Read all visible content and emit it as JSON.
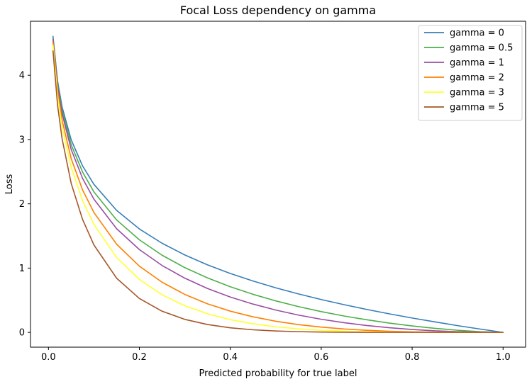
{
  "chart_data": {
    "type": "line",
    "title": "Focal Loss dependency on gamma",
    "xlabel": "Predicted probability for true label",
    "ylabel": "Loss",
    "xlim": [
      -0.0395,
      1.0495
    ],
    "ylim": [
      -0.23,
      4.84
    ],
    "x_ticks": [
      0.0,
      0.2,
      0.4,
      0.6,
      0.8,
      1.0
    ],
    "x_tick_labels": [
      "0.0",
      "0.2",
      "0.4",
      "0.6",
      "0.8",
      "1.0"
    ],
    "y_ticks": [
      0,
      1,
      2,
      3,
      4
    ],
    "y_tick_labels": [
      "0",
      "1",
      "2",
      "3",
      "4"
    ],
    "grid": false,
    "legend_position": "top-right",
    "x": [
      0.01,
      0.02,
      0.03,
      0.05,
      0.075,
      0.1,
      0.15,
      0.2,
      0.25,
      0.3,
      0.35,
      0.4,
      0.45,
      0.5,
      0.55,
      0.6,
      0.65,
      0.7,
      0.75,
      0.8,
      0.85,
      0.9,
      0.95,
      1.0
    ],
    "series": [
      {
        "name": "gamma = 0",
        "color": "#377eb8",
        "values": [
          4.605,
          3.912,
          3.507,
          2.996,
          2.59,
          2.303,
          1.897,
          1.609,
          1.386,
          1.204,
          1.05,
          0.916,
          0.799,
          0.693,
          0.598,
          0.511,
          0.431,
          0.357,
          0.288,
          0.223,
          0.163,
          0.105,
          0.051,
          0.0
        ]
      },
      {
        "name": "gamma = 0.5",
        "color": "#4daf4a",
        "values": [
          4.582,
          3.873,
          3.453,
          2.92,
          2.494,
          2.185,
          1.749,
          1.44,
          1.2,
          1.007,
          0.847,
          0.71,
          0.592,
          0.49,
          0.401,
          0.323,
          0.255,
          0.196,
          0.144,
          0.1,
          0.063,
          0.033,
          0.011,
          0.0
        ]
      },
      {
        "name": "gamma = 1",
        "color": "#984ea3",
        "values": [
          4.559,
          3.834,
          3.402,
          2.846,
          2.396,
          2.072,
          1.612,
          1.288,
          1.04,
          0.843,
          0.682,
          0.55,
          0.44,
          0.347,
          0.269,
          0.204,
          0.151,
          0.107,
          0.072,
          0.045,
          0.024,
          0.011,
          0.003,
          0.0
        ]
      },
      {
        "name": "gamma = 2",
        "color": "#ff7f00",
        "values": [
          4.513,
          3.757,
          3.3,
          2.704,
          2.217,
          1.865,
          1.371,
          1.03,
          0.78,
          0.59,
          0.444,
          0.33,
          0.242,
          0.173,
          0.121,
          0.082,
          0.053,
          0.032,
          0.018,
          0.009,
          0.004,
          0.001,
          0.0,
          0.0
        ]
      },
      {
        "name": "gamma = 3",
        "color": "#ffff33",
        "values": [
          4.468,
          3.682,
          3.201,
          2.569,
          2.051,
          1.679,
          1.165,
          0.824,
          0.585,
          0.413,
          0.289,
          0.198,
          0.133,
          0.087,
          0.054,
          0.033,
          0.019,
          0.01,
          0.004,
          0.002,
          0.001,
          0.0,
          0.0,
          0.0
        ]
      },
      {
        "name": "gamma = 5",
        "color": "#a65628",
        "values": [
          4.38,
          3.536,
          3.012,
          2.318,
          1.757,
          1.36,
          0.842,
          0.527,
          0.329,
          0.202,
          0.122,
          0.071,
          0.04,
          0.022,
          0.011,
          0.005,
          0.002,
          0.001,
          0.0,
          0.0,
          0.0,
          0.0,
          0.0,
          0.0
        ]
      }
    ]
  }
}
